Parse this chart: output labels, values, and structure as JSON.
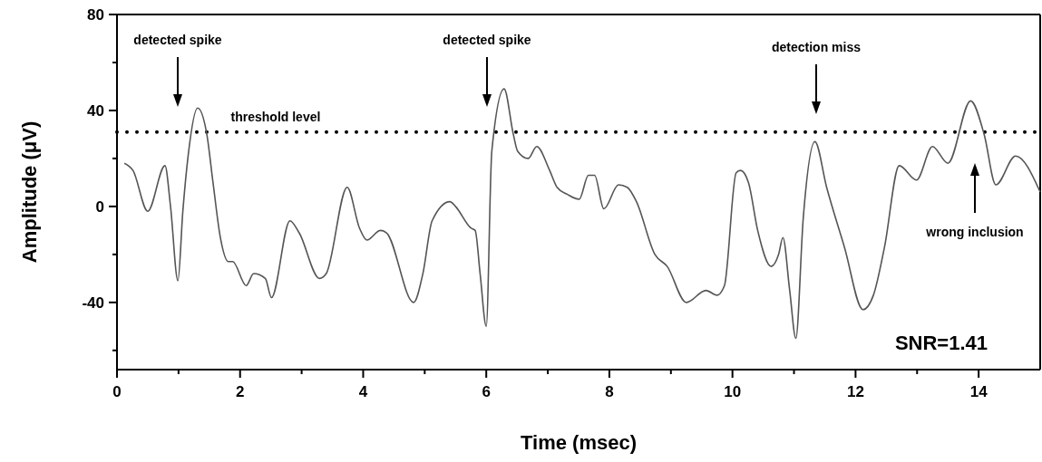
{
  "chart_data": {
    "type": "line",
    "xlabel": "Time (msec)",
    "ylabel": "Amplitude (μV)",
    "xlim": [
      0,
      15
    ],
    "ylim": [
      -68,
      80
    ],
    "xticks": [
      0,
      {
        "value": 1,
        "label": null
      },
      2,
      {
        "value": 3,
        "label": null
      },
      4,
      {
        "value": 5,
        "label": null
      },
      6,
      {
        "value": 7,
        "label": null
      },
      8,
      {
        "value": 9,
        "label": null
      },
      10,
      {
        "value": 11,
        "label": null
      },
      12,
      {
        "value": 13,
        "label": null
      },
      14
    ],
    "yticks": [
      {
        "value": -60,
        "label": null
      },
      -40,
      {
        "value": -20,
        "label": null
      },
      0,
      {
        "value": 20,
        "label": null
      },
      40,
      {
        "value": 60,
        "label": null
      },
      80
    ],
    "grid": false,
    "marker": "none",
    "line_style": "solid",
    "series": [
      {
        "color": "#555555",
        "x": [
          0.12,
          0.26,
          0.5,
          0.78,
          0.87,
          0.99,
          1.07,
          1.16,
          1.31,
          1.46,
          1.56,
          1.68,
          1.81,
          1.88,
          2.1,
          2.22,
          2.41,
          2.51,
          2.81,
          2.96,
          3.29,
          3.4,
          3.74,
          3.94,
          4.06,
          4.28,
          4.38,
          4.82,
          4.97,
          5.12,
          5.41,
          5.5,
          5.75,
          5.82,
          5.9,
          6.0,
          6.09,
          6.29,
          6.44,
          6.51,
          6.68,
          6.82,
          7.03,
          7.15,
          7.32,
          7.51,
          7.66,
          7.76,
          7.91,
          8.15,
          8.29,
          8.44,
          8.74,
          8.94,
          9.25,
          9.57,
          9.75,
          9.87,
          10.06,
          10.13,
          10.26,
          10.41,
          10.63,
          10.75,
          10.82,
          10.93,
          11.03,
          11.15,
          11.34,
          11.53,
          11.82,
          12.12,
          12.29,
          12.47,
          12.71,
          12.99,
          13.25,
          13.5,
          13.87,
          14.09,
          14.28,
          14.6,
          15.0
        ],
        "values": [
          18,
          15,
          -2,
          17,
          0,
          -31,
          -2,
          22,
          41,
          30,
          10,
          -13,
          -23,
          -23,
          -33,
          -28,
          -30,
          -38,
          -6,
          -11,
          -30,
          -28,
          8,
          -9,
          -14,
          -10,
          -11,
          -40,
          -28,
          -6,
          2,
          0,
          -9,
          -10,
          -28,
          -50,
          23,
          49,
          30,
          23,
          20,
          25,
          15,
          8,
          5,
          3,
          13,
          13,
          -1,
          9,
          8,
          2,
          -20,
          -25,
          -40,
          -35,
          -37,
          -33,
          14,
          15,
          10,
          -10,
          -25,
          -20,
          -13,
          -35,
          -55,
          -5,
          27,
          8,
          -17,
          -43,
          -37,
          -17,
          17,
          11,
          25,
          18,
          44,
          30,
          9,
          21,
          6
        ]
      }
    ],
    "ref_lines": [
      {
        "axis": "y",
        "value": 31,
        "label": "threshold level",
        "line_style": "dotted",
        "color": "#000000"
      }
    ],
    "annotations": [
      "detected spike",
      "detected spike",
      "detection miss",
      "wrong inclusion",
      "SNR=1.41"
    ]
  }
}
